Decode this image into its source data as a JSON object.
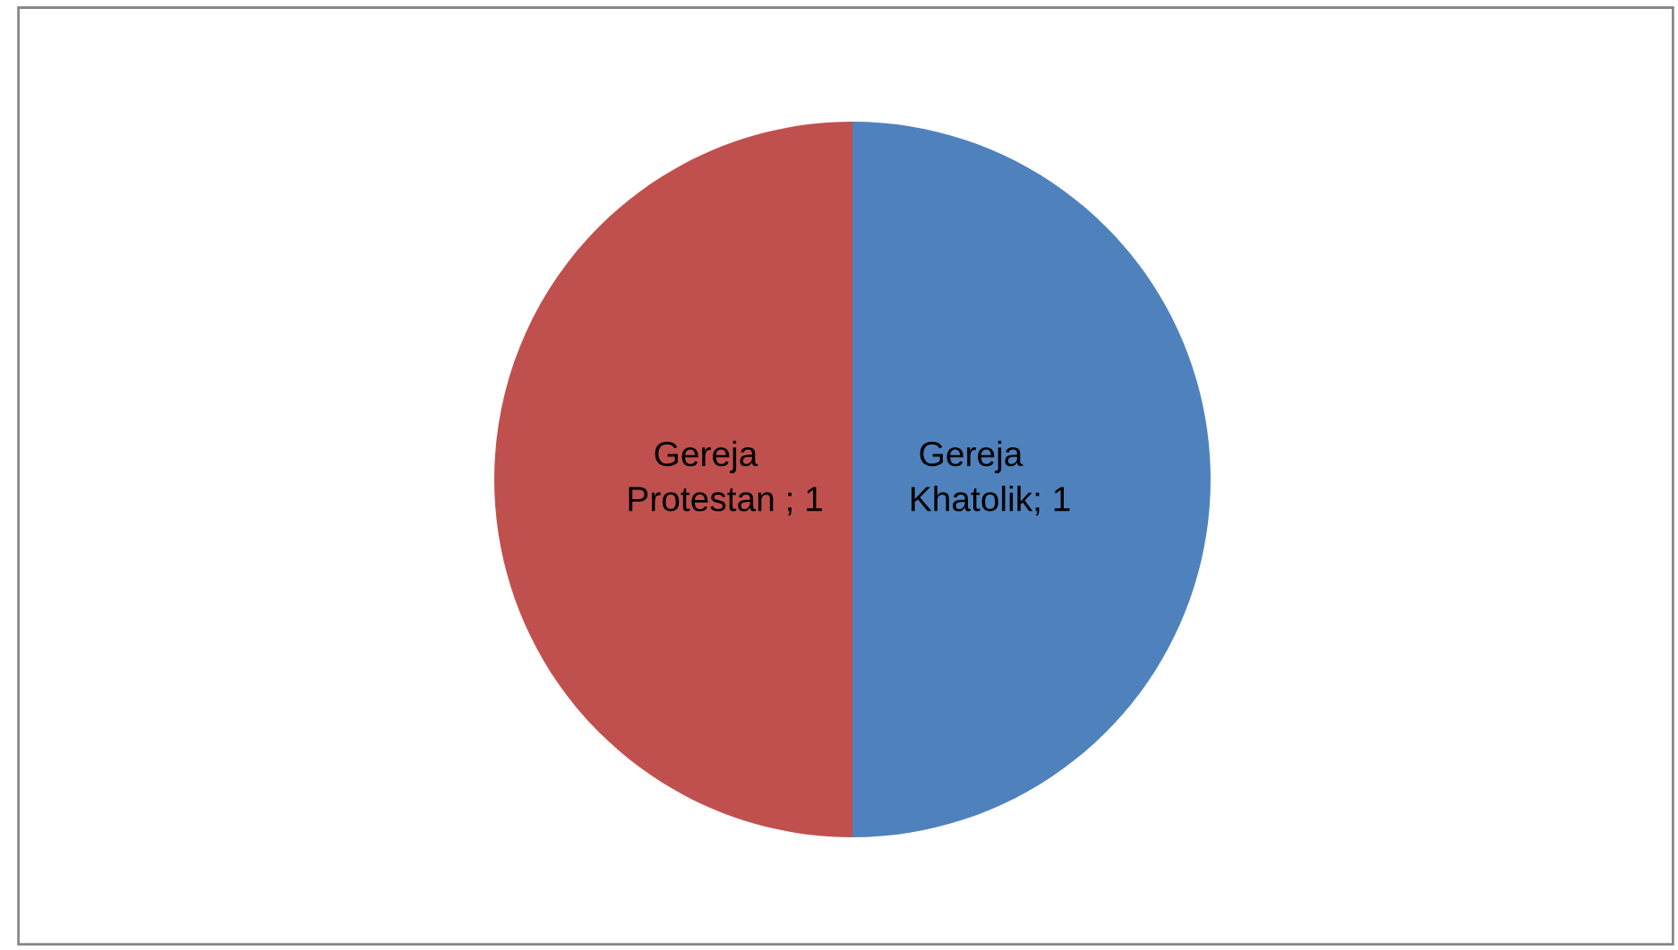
{
  "chart_data": {
    "type": "pie",
    "categories": [
      "Gereja Khatolik",
      "Gereja Protestan "
    ],
    "values": [
      1,
      1
    ],
    "colors": [
      "#4f81bd",
      "#c0504d"
    ],
    "value_labels": [
      "; 1",
      "; 1"
    ],
    "legend": false
  }
}
